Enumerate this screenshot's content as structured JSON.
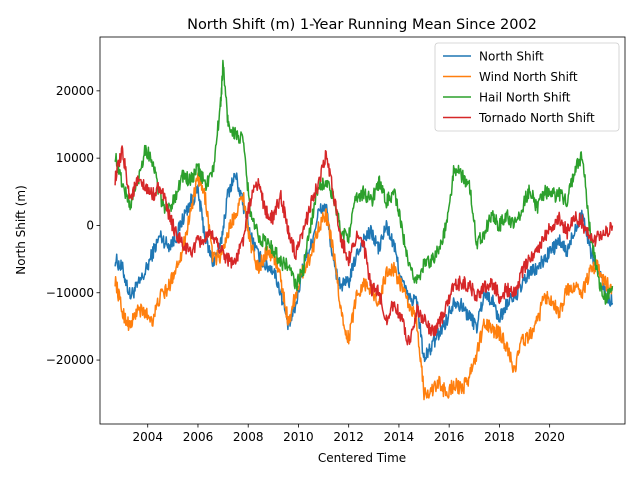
{
  "chart_data": {
    "type": "line",
    "title": "North Shift (m) 1-Year Running Mean Since 2002",
    "xlabel": "Centered Time",
    "ylabel": "North Shift (m)",
    "xlim": [
      2002.1,
      2023.0
    ],
    "ylim": [
      -29500,
      28000
    ],
    "x_ticks": [
      2004,
      2006,
      2008,
      2010,
      2012,
      2014,
      2016,
      2018,
      2020
    ],
    "x_tick_labels": [
      "2004",
      "2006",
      "2008",
      "2010",
      "2012",
      "2014",
      "2016",
      "2018",
      "2020"
    ],
    "y_ticks": [
      -20000,
      -10000,
      0,
      10000,
      20000
    ],
    "y_tick_labels": [
      "−20000",
      "−10000",
      "0",
      "10000",
      "20000"
    ],
    "grid": false,
    "legend": "top-right",
    "series": [
      {
        "name": "North Shift",
        "color": "#1f77b4",
        "x": [
          2002.7,
          2003.0,
          2003.3,
          2003.6,
          2003.9,
          2004.2,
          2004.5,
          2004.8,
          2005.1,
          2005.4,
          2005.7,
          2006.0,
          2006.3,
          2006.6,
          2006.9,
          2007.2,
          2007.5,
          2007.8,
          2008.1,
          2008.4,
          2008.7,
          2009.0,
          2009.3,
          2009.6,
          2009.9,
          2010.2,
          2010.5,
          2010.8,
          2011.1,
          2011.4,
          2011.7,
          2012.0,
          2012.3,
          2012.6,
          2012.9,
          2013.2,
          2013.5,
          2013.8,
          2014.1,
          2014.4,
          2014.7,
          2015.0,
          2015.3,
          2015.6,
          2015.9,
          2016.2,
          2016.5,
          2016.8,
          2017.1,
          2017.4,
          2017.7,
          2018.0,
          2018.3,
          2018.6,
          2018.9,
          2019.2,
          2019.5,
          2019.8,
          2020.1,
          2020.4,
          2020.7,
          2021.0,
          2021.3,
          2021.6,
          2021.9,
          2022.2,
          2022.5
        ],
        "y": [
          -5000,
          -6500,
          -10500,
          -9000,
          -7000,
          -4000,
          -1500,
          -3000,
          -2000,
          1000,
          3500,
          5000,
          -2000,
          -5500,
          -3000,
          5000,
          7500,
          3000,
          -1500,
          -4500,
          -6000,
          -6500,
          -10000,
          -15000,
          -12000,
          -5500,
          -3000,
          2000,
          3000,
          -6000,
          -9000,
          -8500,
          -4500,
          -2000,
          -1000,
          -3500,
          0,
          -3000,
          -8000,
          -11000,
          -11000,
          -20000,
          -18000,
          -16000,
          -14000,
          -11000,
          -12000,
          -13500,
          -15000,
          -10000,
          -11000,
          -14000,
          -11500,
          -10500,
          -9000,
          -7000,
          -6500,
          -5000,
          -3500,
          -2500,
          -4000,
          -500,
          2000,
          -3500,
          -6000,
          -10000,
          -11500
        ]
      },
      {
        "name": "Wind North Shift",
        "color": "#ff7f0e",
        "x": [
          2002.7,
          2003.0,
          2003.3,
          2003.6,
          2003.9,
          2004.2,
          2004.5,
          2004.8,
          2005.1,
          2005.4,
          2005.7,
          2006.0,
          2006.3,
          2006.6,
          2006.9,
          2007.2,
          2007.5,
          2007.8,
          2008.1,
          2008.4,
          2008.7,
          2009.0,
          2009.3,
          2009.6,
          2009.9,
          2010.2,
          2010.5,
          2010.8,
          2011.1,
          2011.4,
          2011.7,
          2012.0,
          2012.3,
          2012.6,
          2012.9,
          2013.2,
          2013.5,
          2013.8,
          2014.1,
          2014.4,
          2014.7,
          2015.0,
          2015.3,
          2015.6,
          2015.9,
          2016.2,
          2016.5,
          2016.8,
          2017.1,
          2017.4,
          2017.7,
          2018.0,
          2018.3,
          2018.6,
          2018.9,
          2019.2,
          2019.5,
          2019.8,
          2020.1,
          2020.4,
          2020.7,
          2021.0,
          2021.3,
          2021.6,
          2021.9,
          2022.2,
          2022.5
        ],
        "y": [
          -8000,
          -13000,
          -15000,
          -12500,
          -13000,
          -14000,
          -10500,
          -9500,
          -6500,
          -3500,
          2000,
          7000,
          4000,
          -5000,
          -4500,
          -1000,
          2000,
          4500,
          -3000,
          -6500,
          -4000,
          -4500,
          -8000,
          -14500,
          -10000,
          -6500,
          -4500,
          0,
          1500,
          -4000,
          -13000,
          -17000,
          -10500,
          -8500,
          -9500,
          -11500,
          -7000,
          -6500,
          -9000,
          -12000,
          -14000,
          -25000,
          -24500,
          -23500,
          -25000,
          -23500,
          -24500,
          -22500,
          -19000,
          -14500,
          -15500,
          -16000,
          -18000,
          -21500,
          -17000,
          -16500,
          -14500,
          -10500,
          -11000,
          -13000,
          -9500,
          -9000,
          -10000,
          -7000,
          -6000,
          -8500,
          -9500
        ]
      },
      {
        "name": "Hail North Shift",
        "color": "#2ca02c",
        "x": [
          2002.7,
          2003.0,
          2003.3,
          2003.6,
          2003.9,
          2004.2,
          2004.5,
          2004.8,
          2005.1,
          2005.4,
          2005.7,
          2006.0,
          2006.3,
          2006.6,
          2006.9,
          2007.0,
          2007.2,
          2007.5,
          2007.8,
          2008.1,
          2008.4,
          2008.7,
          2009.0,
          2009.3,
          2009.6,
          2009.9,
          2010.2,
          2010.5,
          2010.8,
          2011.1,
          2011.4,
          2011.7,
          2012.0,
          2012.3,
          2012.6,
          2012.9,
          2013.2,
          2013.5,
          2013.8,
          2014.1,
          2014.4,
          2014.7,
          2015.0,
          2015.3,
          2015.6,
          2015.9,
          2016.2,
          2016.5,
          2016.8,
          2017.1,
          2017.4,
          2017.7,
          2018.0,
          2018.3,
          2018.6,
          2018.9,
          2019.2,
          2019.5,
          2019.8,
          2020.1,
          2020.4,
          2020.7,
          2021.0,
          2021.3,
          2021.6,
          2021.9,
          2022.2,
          2022.5
        ],
        "y": [
          10500,
          6000,
          3000,
          6500,
          11500,
          9500,
          4000,
          2000,
          4500,
          7500,
          6500,
          8500,
          6000,
          8000,
          18000,
          24000,
          15000,
          13500,
          12500,
          1500,
          -1500,
          -2500,
          -3500,
          -5500,
          -6000,
          -9000,
          -6500,
          500,
          6000,
          6500,
          4000,
          -1000,
          -1500,
          4000,
          5000,
          3500,
          6500,
          3500,
          5000,
          0,
          -6500,
          -8000,
          -6000,
          -5000,
          -3500,
          0,
          8500,
          7500,
          6000,
          -2500,
          -1000,
          1500,
          0,
          1500,
          0,
          2500,
          5500,
          2500,
          5000,
          4500,
          4500,
          3500,
          8500,
          10500,
          -500,
          -7500,
          -11000,
          -9000
        ]
      },
      {
        "name": "Tornado North Shift",
        "color": "#d62728",
        "x": [
          2002.7,
          2003.0,
          2003.3,
          2003.6,
          2003.9,
          2004.2,
          2004.5,
          2004.8,
          2005.1,
          2005.4,
          2005.7,
          2006.0,
          2006.3,
          2006.6,
          2006.9,
          2007.2,
          2007.5,
          2007.8,
          2008.1,
          2008.4,
          2008.7,
          2009.0,
          2009.3,
          2009.6,
          2009.9,
          2010.2,
          2010.5,
          2010.8,
          2011.1,
          2011.4,
          2011.7,
          2012.0,
          2012.3,
          2012.6,
          2012.9,
          2013.2,
          2013.5,
          2013.8,
          2014.1,
          2014.4,
          2014.7,
          2015.0,
          2015.3,
          2015.6,
          2015.9,
          2016.2,
          2016.5,
          2016.8,
          2017.1,
          2017.4,
          2017.7,
          2018.0,
          2018.3,
          2018.6,
          2018.9,
          2019.2,
          2019.5,
          2019.8,
          2020.1,
          2020.4,
          2020.7,
          2021.0,
          2021.3,
          2021.6,
          2021.9,
          2022.2,
          2022.5
        ],
        "y": [
          7000,
          11000,
          4000,
          6500,
          5500,
          4500,
          6000,
          2000,
          -1000,
          -3000,
          -4000,
          -2500,
          -2000,
          -1500,
          -3500,
          -5000,
          -5500,
          -2000,
          4000,
          6500,
          2000,
          1000,
          4500,
          -1000,
          -4500,
          -1000,
          3500,
          6000,
          10500,
          4500,
          -2000,
          -5000,
          -1500,
          -3000,
          -9500,
          -10000,
          -14000,
          -11500,
          -14000,
          -17500,
          -12500,
          -14000,
          -16000,
          -14500,
          -12000,
          -9000,
          -8500,
          -9000,
          -10500,
          -9000,
          -8500,
          -10500,
          -9500,
          -10000,
          -7000,
          -5000,
          -3500,
          -1500,
          0,
          1000,
          -1000,
          1500,
          500,
          -2000,
          -2000,
          -1000,
          0
        ]
      }
    ]
  }
}
